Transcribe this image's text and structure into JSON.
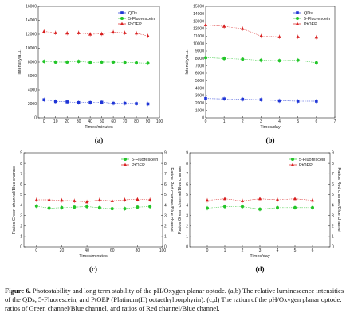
{
  "figure": {
    "caption_label": "Figure 6.",
    "caption_text": " Photostability and long term stability of the pH/Oxygen planar optode. (a,b) The relative luminescence intensities of the QDs, 5-Fluorescein, and PtOEP (Platinum(II) octaethylporphyrin). (c,d) The ration of the pH/Oxygen planar optode: ratios of Green channel/Blue channel, and ratios of Red channel/Blue channel."
  },
  "colors": {
    "qds": "#1f35d6",
    "fluorescein": "#22c528",
    "ptoep": "#d81e1e"
  },
  "chart_data": [
    {
      "panel": "(a)",
      "type": "scatter",
      "xlabel": "Times/minutes",
      "ylabel": "Intensity/a.u.",
      "xlim": [
        -5,
        100
      ],
      "ylim": [
        0,
        16000
      ],
      "xticks": [
        0,
        10,
        20,
        30,
        40,
        50,
        60,
        70,
        80,
        90,
        100
      ],
      "yticks": [
        0,
        2000,
        4000,
        6000,
        8000,
        10000,
        12000,
        14000,
        16000
      ],
      "x": [
        0,
        10,
        20,
        30,
        40,
        50,
        60,
        70,
        80,
        90
      ],
      "series": [
        {
          "name": "QDs",
          "marker": "square",
          "color": "#1f35d6",
          "values": [
            2600,
            2350,
            2300,
            2200,
            2200,
            2250,
            2100,
            2100,
            2050,
            2000
          ]
        },
        {
          "name": "5-Fluorescein",
          "marker": "circle",
          "color": "#22c528",
          "values": [
            8100,
            8000,
            8000,
            8100,
            7950,
            8000,
            8000,
            7950,
            7900,
            7850
          ]
        },
        {
          "name": "PtOEP",
          "marker": "triangle",
          "color": "#d81e1e",
          "values": [
            12400,
            12200,
            12150,
            12200,
            12000,
            12050,
            12300,
            12200,
            12150,
            11750
          ]
        }
      ],
      "legend": "top-right"
    },
    {
      "panel": "(b)",
      "type": "scatter",
      "xlabel": "Times/day",
      "ylabel": "Intensity/a.u.",
      "xlim": [
        0,
        7
      ],
      "ylim": [
        0,
        15000
      ],
      "xticks": [
        0,
        1,
        2,
        3,
        4,
        5,
        6,
        7
      ],
      "yticks": [
        0,
        1000,
        2000,
        3000,
        4000,
        5000,
        6000,
        7000,
        8000,
        9000,
        10000,
        11000,
        12000,
        13000,
        14000,
        15000
      ],
      "x": [
        0,
        1,
        2,
        3,
        4,
        5,
        6
      ],
      "series": [
        {
          "name": "QDs",
          "marker": "square",
          "color": "#1f35d6",
          "values": [
            2600,
            2550,
            2500,
            2450,
            2300,
            2250,
            2250
          ]
        },
        {
          "name": "5-Fluorescein",
          "marker": "circle",
          "color": "#22c528",
          "values": [
            8100,
            8000,
            7900,
            7750,
            7700,
            7750,
            7400
          ]
        },
        {
          "name": "PtOEP",
          "marker": "triangle",
          "color": "#d81e1e",
          "values": [
            12500,
            12300,
            12000,
            11000,
            10900,
            10900,
            10850
          ]
        }
      ],
      "legend": "top-right"
    },
    {
      "panel": "(c)",
      "type": "scatter",
      "xlabel": "Times/minutes",
      "ylabel": "Ratios Green channel/Blue channel",
      "y2label": "Ratios Red channel/Blue channel",
      "xlim": [
        -10,
        100
      ],
      "ylim": [
        0,
        9
      ],
      "xticks": [
        0,
        20,
        40,
        60,
        80,
        100
      ],
      "yticks": [
        0,
        1,
        2,
        3,
        4,
        5,
        6,
        7,
        8,
        9
      ],
      "x": [
        0,
        10,
        20,
        30,
        40,
        50,
        60,
        70,
        80,
        90
      ],
      "series": [
        {
          "name": "5-Fluorescein",
          "marker": "circle",
          "color": "#22c528",
          "axis": "left",
          "values": [
            3.9,
            3.7,
            3.75,
            3.8,
            3.85,
            3.75,
            3.65,
            3.65,
            3.8,
            3.85
          ]
        },
        {
          "name": "PtOEP",
          "marker": "triangle",
          "color": "#d81e1e",
          "axis": "right",
          "values": [
            4.5,
            4.5,
            4.45,
            4.4,
            4.3,
            4.5,
            4.4,
            4.5,
            4.55,
            4.5
          ]
        }
      ],
      "legend": "top-right"
    },
    {
      "panel": "(d)",
      "type": "scatter",
      "xlabel": "Times/day",
      "ylabel": "Ratios Green channel/Blue channel",
      "y2label": "Ratios Red channel/Blue channel",
      "xlim": [
        -1,
        7
      ],
      "ylim": [
        0,
        9
      ],
      "xticks": [
        0,
        1,
        2,
        3,
        4,
        5,
        6
      ],
      "yticks": [
        0,
        1,
        2,
        3,
        4,
        5,
        6,
        7,
        8,
        9
      ],
      "x": [
        0,
        1,
        2,
        3,
        4,
        5,
        6
      ],
      "series": [
        {
          "name": "5-Fluorescein",
          "marker": "circle",
          "color": "#22c528",
          "axis": "left",
          "values": [
            3.7,
            3.85,
            3.85,
            3.6,
            3.75,
            3.75,
            3.75
          ]
        },
        {
          "name": "PtOEP",
          "marker": "triangle",
          "color": "#d81e1e",
          "axis": "right",
          "values": [
            4.45,
            4.6,
            4.4,
            4.6,
            4.5,
            4.6,
            4.45
          ]
        }
      ],
      "legend": "top-right"
    }
  ]
}
